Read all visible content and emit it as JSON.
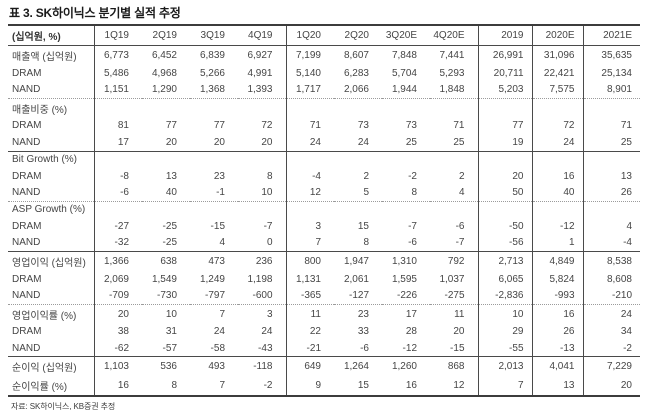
{
  "title": "표 3. SK하이닉스 분기별 실적 추정",
  "source": "자료: SK하이닉스, KB증권 추정",
  "table": {
    "unit_label": "(십억원, %)",
    "columns": [
      "1Q19",
      "2Q19",
      "3Q19",
      "4Q19",
      "1Q20",
      "2Q20",
      "3Q20E",
      "4Q20E",
      "2019",
      "2020E",
      "2021E"
    ],
    "rows": [
      {
        "label": "매출액 (십억원)",
        "sep": "none",
        "section": false,
        "values": [
          "6,773",
          "6,452",
          "6,839",
          "6,927",
          "7,199",
          "8,607",
          "7,848",
          "7,441",
          "26,991",
          "31,096",
          "35,635"
        ]
      },
      {
        "label": "DRAM",
        "sep": "none",
        "section": false,
        "values": [
          "5,486",
          "4,968",
          "5,266",
          "4,991",
          "5,140",
          "6,283",
          "5,704",
          "5,293",
          "20,711",
          "22,421",
          "25,134"
        ]
      },
      {
        "label": "NAND",
        "sep": "none",
        "section": false,
        "values": [
          "1,151",
          "1,290",
          "1,368",
          "1,393",
          "1,717",
          "2,066",
          "1,944",
          "1,848",
          "5,203",
          "7,575",
          "8,901"
        ]
      },
      {
        "label": "매출비중 (%)",
        "sep": "dotted",
        "section": true,
        "values": []
      },
      {
        "label": "DRAM",
        "sep": "none",
        "section": false,
        "values": [
          "81",
          "77",
          "77",
          "72",
          "71",
          "73",
          "73",
          "71",
          "77",
          "72",
          "71"
        ]
      },
      {
        "label": "NAND",
        "sep": "none",
        "section": false,
        "values": [
          "17",
          "20",
          "20",
          "20",
          "24",
          "24",
          "25",
          "25",
          "19",
          "24",
          "25"
        ]
      },
      {
        "label": "Bit Growth (%)",
        "sep": "solid",
        "section": true,
        "values": []
      },
      {
        "label": "DRAM",
        "sep": "none",
        "section": false,
        "values": [
          "-8",
          "13",
          "23",
          "8",
          "-4",
          "2",
          "-2",
          "2",
          "20",
          "16",
          "13"
        ]
      },
      {
        "label": "NAND",
        "sep": "none",
        "section": false,
        "values": [
          "-6",
          "40",
          "-1",
          "10",
          "12",
          "5",
          "8",
          "4",
          "50",
          "40",
          "26"
        ]
      },
      {
        "label": "ASP Growth (%)",
        "sep": "dotted",
        "section": true,
        "values": []
      },
      {
        "label": "DRAM",
        "sep": "none",
        "section": false,
        "values": [
          "-27",
          "-25",
          "-15",
          "-7",
          "3",
          "15",
          "-7",
          "-6",
          "-50",
          "-12",
          "4"
        ]
      },
      {
        "label": "NAND",
        "sep": "none",
        "section": false,
        "values": [
          "-32",
          "-25",
          "4",
          "0",
          "7",
          "8",
          "-6",
          "-7",
          "-56",
          "1",
          "-4"
        ]
      },
      {
        "label": "영업이익 (십억원)",
        "sep": "solid",
        "section": false,
        "values": [
          "1,366",
          "638",
          "473",
          "236",
          "800",
          "1,947",
          "1,310",
          "792",
          "2,713",
          "4,849",
          "8,538"
        ]
      },
      {
        "label": "DRAM",
        "sep": "none",
        "section": false,
        "values": [
          "2,069",
          "1,549",
          "1,249",
          "1,198",
          "1,131",
          "2,061",
          "1,595",
          "1,037",
          "6,065",
          "5,824",
          "8,608"
        ]
      },
      {
        "label": "NAND",
        "sep": "none",
        "section": false,
        "values": [
          "-709",
          "-730",
          "-797",
          "-600",
          "-365",
          "-127",
          "-226",
          "-275",
          "-2,836",
          "-993",
          "-210"
        ]
      },
      {
        "label": "영업이익률 (%)",
        "sep": "dotted",
        "section": false,
        "values": [
          "20",
          "10",
          "7",
          "3",
          "11",
          "23",
          "17",
          "11",
          "10",
          "16",
          "24"
        ]
      },
      {
        "label": "DRAM",
        "sep": "none",
        "section": false,
        "values": [
          "38",
          "31",
          "24",
          "24",
          "22",
          "33",
          "28",
          "20",
          "29",
          "26",
          "34"
        ]
      },
      {
        "label": "NAND",
        "sep": "none",
        "section": false,
        "values": [
          "-62",
          "-57",
          "-58",
          "-43",
          "-21",
          "-6",
          "-12",
          "-15",
          "-55",
          "-13",
          "-2"
        ]
      },
      {
        "label": "순이익 (십억원)",
        "sep": "solid",
        "section": false,
        "values": [
          "1,103",
          "536",
          "493",
          "-118",
          "649",
          "1,264",
          "1,260",
          "868",
          "2,013",
          "4,041",
          "7,229"
        ]
      },
      {
        "label": "순이익률 (%)",
        "sep": "none",
        "section": false,
        "values": [
          "16",
          "8",
          "7",
          "-2",
          "9",
          "15",
          "16",
          "12",
          "7",
          "13",
          "20"
        ]
      }
    ]
  }
}
